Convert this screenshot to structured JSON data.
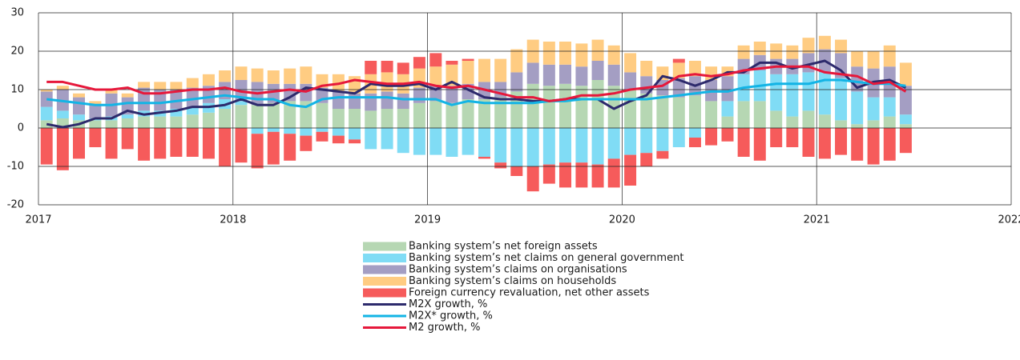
{
  "chart_data": {
    "type": "bar_line",
    "xlim": [
      2017,
      2022
    ],
    "xticks": [
      2017,
      2018,
      2019,
      2020,
      2021,
      2022
    ],
    "ylim": [
      -20,
      30
    ],
    "yticks": [
      -20,
      -10,
      0,
      10,
      20,
      30
    ],
    "grid": true,
    "stacked": true,
    "legend": "bottom",
    "x": [
      2017.042,
      2017.125,
      2017.208,
      2017.292,
      2017.375,
      2017.458,
      2017.542,
      2017.625,
      2017.708,
      2017.792,
      2017.875,
      2017.958,
      2018.042,
      2018.125,
      2018.208,
      2018.292,
      2018.375,
      2018.458,
      2018.542,
      2018.625,
      2018.708,
      2018.792,
      2018.875,
      2018.958,
      2019.042,
      2019.125,
      2019.208,
      2019.292,
      2019.375,
      2019.458,
      2019.542,
      2019.625,
      2019.708,
      2019.792,
      2019.875,
      2019.958,
      2020.042,
      2020.125,
      2020.208,
      2020.292,
      2020.375,
      2020.458,
      2020.542,
      2020.625,
      2020.708,
      2020.792,
      2020.875,
      2020.958,
      2021.042,
      2021.125,
      2021.208,
      2021.292,
      2021.375,
      2021.458
    ],
    "series": [
      {
        "name": "Banking system’s net foreign assets",
        "kind": "bar",
        "color": "#b6d7b3",
        "values": [
          2,
          2.5,
          2,
          2,
          2,
          2.5,
          3,
          3,
          3,
          3.5,
          4,
          5,
          6,
          6,
          6.5,
          7,
          7,
          6.5,
          5,
          5,
          4.5,
          5,
          5,
          6.5,
          7,
          6.5,
          7.5,
          7.5,
          8,
          9.5,
          11.5,
          11,
          11.5,
          11,
          12.5,
          11,
          10,
          9,
          8.5,
          8,
          8.5,
          7,
          3,
          7,
          7,
          4.5,
          3,
          4.5,
          3.5,
          2,
          1,
          2,
          3,
          1
        ]
      },
      {
        "name": "Banking system’s net claims on general government",
        "kind": "bar",
        "color": "#80dcf5",
        "values": [
          3.5,
          2,
          1.5,
          0.5,
          1,
          1,
          1.5,
          1.5,
          2,
          2,
          2.5,
          2.5,
          1,
          -1.5,
          -1,
          -1.5,
          -2,
          -1,
          -2,
          -3,
          -5.5,
          -5.5,
          -6.5,
          -7,
          -7,
          -7.5,
          -7,
          -7.5,
          -9,
          -10,
          -10,
          -9.5,
          -9,
          -9,
          -9.5,
          -8,
          -7,
          -6.5,
          -6,
          -5,
          -2.5,
          0,
          4,
          7,
          8,
          9.5,
          11,
          10,
          11,
          11,
          8.5,
          6,
          5,
          2.5
        ]
      },
      {
        "name": "Banking system’s claims on organisations",
        "kind": "bar",
        "color": "#a49ec3",
        "values": [
          4,
          5.5,
          4.5,
          3.5,
          6,
          4.5,
          6,
          5.5,
          5,
          5,
          4.5,
          4.5,
          5.5,
          6,
          5,
          4.5,
          4.5,
          4,
          4.5,
          4,
          4.5,
          4.5,
          4,
          4,
          4,
          4.5,
          4,
          4.5,
          4,
          5,
          5.5,
          5.5,
          5,
          5,
          5,
          5.5,
          4.5,
          4.5,
          4,
          5,
          5,
          5.5,
          6.5,
          4,
          4,
          4,
          4,
          5,
          6,
          6.5,
          6.5,
          7.5,
          8,
          7.5
        ]
      },
      {
        "name": "Banking system’s claims on households",
        "kind": "bar",
        "color": "#ffcc82",
        "values": [
          0.5,
          1,
          1,
          1,
          1,
          1,
          1.5,
          2,
          2,
          2.5,
          3,
          3,
          3.5,
          3.5,
          3.5,
          4,
          4.5,
          3.5,
          4.5,
          4.5,
          5,
          5,
          5,
          5,
          5,
          5.5,
          6,
          6,
          6,
          6,
          6,
          6,
          6,
          6,
          5.5,
          5,
          5,
          4,
          3.5,
          4,
          4,
          3.5,
          2.5,
          3.5,
          3.5,
          4,
          3.5,
          4,
          3.5,
          3.5,
          4,
          4.5,
          5.5,
          6
        ]
      },
      {
        "name": "Foreign currency revaluation, net other assets",
        "kind": "bar",
        "color": "#f65b5b",
        "values": [
          -9.5,
          -11,
          -8,
          -5,
          -8,
          -5.5,
          -8.5,
          -8,
          -7.5,
          -7.5,
          -8,
          -10,
          -9,
          -9,
          -8.5,
          -7,
          -4,
          -2.5,
          -2,
          -1,
          3.5,
          3,
          3,
          3,
          3.5,
          1,
          0.5,
          -0.5,
          -1.5,
          -2.5,
          -6.5,
          -5,
          -6.5,
          -6.5,
          -6,
          -7.5,
          -8,
          -3.5,
          -2,
          1,
          -2.5,
          -4.5,
          -3.5,
          -7.5,
          -8.5,
          -5,
          -5,
          -7.5,
          -8,
          -7,
          -8.5,
          -9.5,
          -8.5,
          -6.5
        ]
      },
      {
        "name": "M2X growth, %",
        "kind": "line",
        "color": "#2d2a6c",
        "values": [
          1,
          0.2,
          1,
          2.5,
          2.5,
          4.5,
          3.5,
          4,
          4.5,
          5.5,
          5.5,
          6,
          7.5,
          6,
          6,
          8,
          10.5,
          10,
          9.5,
          9,
          11.5,
          11,
          11,
          11.5,
          10,
          12,
          10,
          8,
          7.5,
          7.5,
          7,
          7,
          7.5,
          7.5,
          7.5,
          5,
          7,
          8.5,
          13.5,
          12.5,
          11,
          12.5,
          14.5,
          14.5,
          17,
          17,
          15.5,
          16.5,
          17.5,
          15,
          10.5,
          12,
          12.5,
          10.5
        ]
      },
      {
        "name": "M2X* growth, %",
        "kind": "line",
        "color": "#13b4e5",
        "values": [
          7.5,
          7,
          6.5,
          6,
          6,
          6.5,
          6.5,
          6.5,
          7,
          7.5,
          8,
          8.5,
          8,
          7.5,
          7.5,
          6,
          5.5,
          7.5,
          8,
          8,
          8,
          8,
          7.5,
          7.5,
          7.5,
          6,
          7,
          6.5,
          6.5,
          6.5,
          6.5,
          7,
          7,
          7.5,
          7.5,
          7.5,
          7.5,
          7.5,
          8,
          8.5,
          9,
          9.5,
          9.5,
          10.5,
          11,
          11.5,
          11.5,
          11.5,
          12.5,
          12.5,
          12,
          11.5,
          11.5,
          11
        ]
      },
      {
        "name": "M2 growth, %",
        "kind": "line",
        "color": "#e6183b",
        "values": [
          12,
          12,
          11,
          10,
          10,
          10.5,
          9,
          9,
          9.5,
          10,
          10,
          10.5,
          9.5,
          9,
          9.5,
          10,
          9.5,
          11,
          11.5,
          12.5,
          12,
          11.5,
          11.5,
          12,
          11,
          10.5,
          11,
          10,
          9,
          8,
          8,
          7,
          7.5,
          8.5,
          8.5,
          9,
          10,
          10.5,
          11,
          13.5,
          14,
          13.5,
          14,
          15,
          15.5,
          16,
          16,
          16,
          14.5,
          14,
          13.5,
          11.5,
          12,
          9.5
        ]
      }
    ]
  }
}
